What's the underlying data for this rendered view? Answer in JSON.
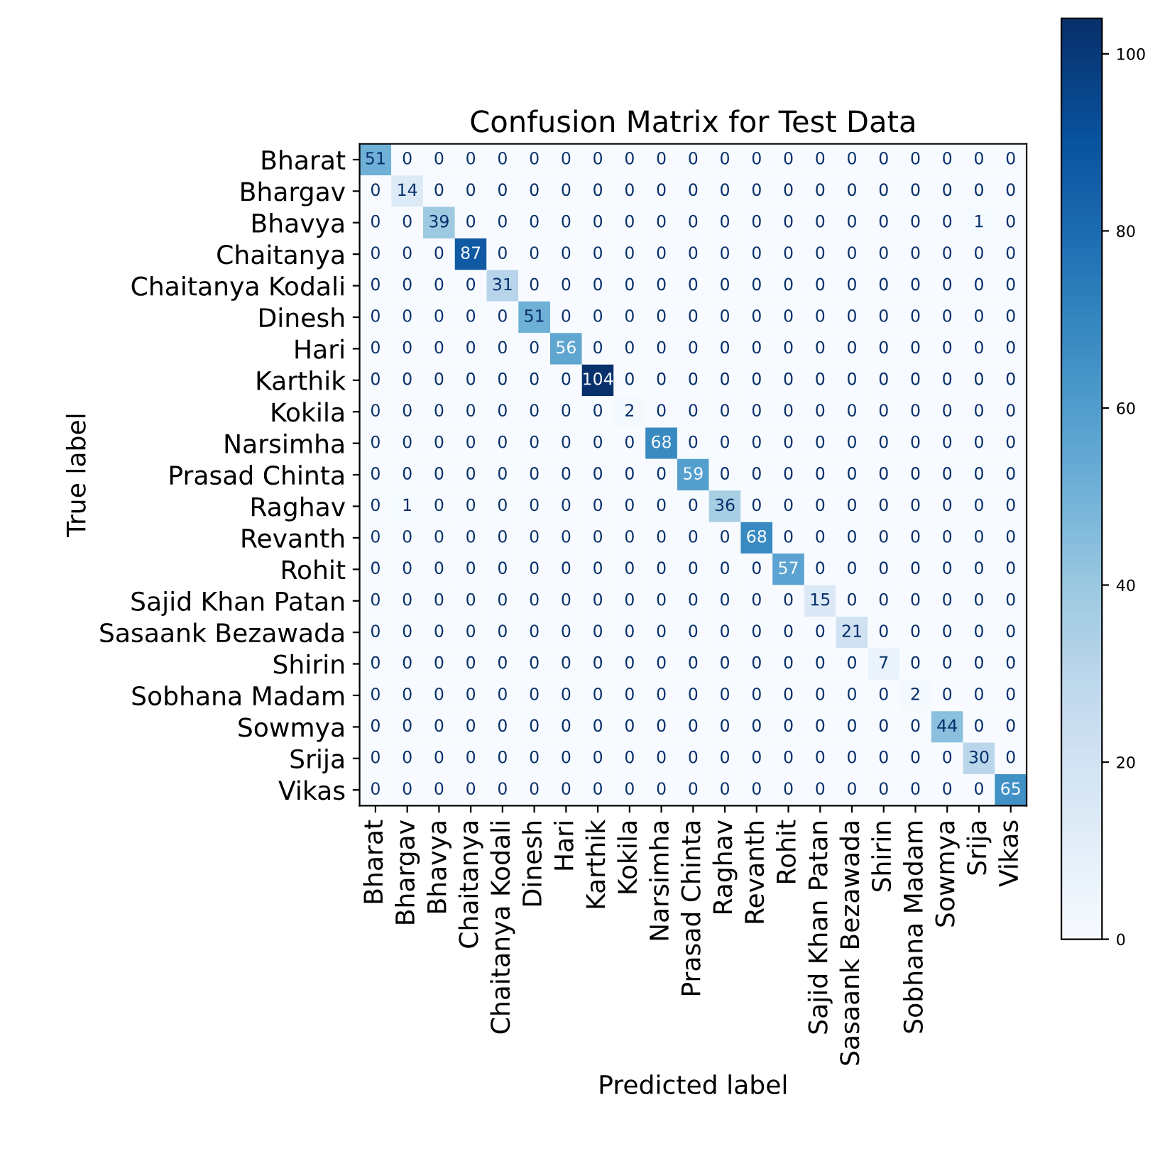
{
  "chart_data": {
    "type": "heatmap",
    "title": "Confusion Matrix for Test Data",
    "xlabel": "Predicted label",
    "ylabel": "True label",
    "categories": [
      "Bharat",
      "Bhargav",
      "Bhavya",
      "Chaitanya",
      "Chaitanya Kodali",
      "Dinesh",
      "Hari",
      "Karthik",
      "Kokila",
      "Narsimha",
      "Prasad Chinta",
      "Raghav",
      "Revanth",
      "Rohit",
      "Sajid Khan Patan",
      "Sasaank Bezawada",
      "Shirin",
      "Sobhana Madam",
      "Sowmya",
      "Srija",
      "Vikas"
    ],
    "y_categories": [
      "Bharat",
      "Bhargav",
      "Bhavya",
      "Chaitanya",
      "Chaitanya Kodali",
      "Dinesh",
      "Hari",
      "Karthik",
      "Kokila",
      "Narsimha",
      "Prasad Chinta",
      "Raghav",
      "Revanth",
      "Rohit",
      "Sajid Khan Patan",
      "Sasaank Bezawada",
      "Shirin",
      "Sobhana Madam",
      "Sowmya",
      "Srija",
      "Vikas"
    ],
    "cells": [
      [
        51,
        0,
        0,
        0,
        0,
        0,
        0,
        0,
        0,
        0,
        0,
        0,
        0,
        0,
        0,
        0,
        0,
        0,
        0,
        0,
        0
      ],
      [
        0,
        14,
        0,
        0,
        0,
        0,
        0,
        0,
        0,
        0,
        0,
        0,
        0,
        0,
        0,
        0,
        0,
        0,
        0,
        0,
        0
      ],
      [
        0,
        0,
        39,
        0,
        0,
        0,
        0,
        0,
        0,
        0,
        0,
        0,
        0,
        0,
        0,
        0,
        0,
        0,
        0,
        1,
        0
      ],
      [
        0,
        0,
        0,
        87,
        0,
        0,
        0,
        0,
        0,
        0,
        0,
        0,
        0,
        0,
        0,
        0,
        0,
        0,
        0,
        0,
        0
      ],
      [
        0,
        0,
        0,
        0,
        31,
        0,
        0,
        0,
        0,
        0,
        0,
        0,
        0,
        0,
        0,
        0,
        0,
        0,
        0,
        0,
        0
      ],
      [
        0,
        0,
        0,
        0,
        0,
        51,
        0,
        0,
        0,
        0,
        0,
        0,
        0,
        0,
        0,
        0,
        0,
        0,
        0,
        0,
        0
      ],
      [
        0,
        0,
        0,
        0,
        0,
        0,
        56,
        0,
        0,
        0,
        0,
        0,
        0,
        0,
        0,
        0,
        0,
        0,
        0,
        0,
        0
      ],
      [
        0,
        0,
        0,
        0,
        0,
        0,
        0,
        104,
        0,
        0,
        0,
        0,
        0,
        0,
        0,
        0,
        0,
        0,
        0,
        0,
        0
      ],
      [
        0,
        0,
        0,
        0,
        0,
        0,
        0,
        0,
        2,
        0,
        0,
        0,
        0,
        0,
        0,
        0,
        0,
        0,
        0,
        0,
        0
      ],
      [
        0,
        0,
        0,
        0,
        0,
        0,
        0,
        0,
        0,
        68,
        0,
        0,
        0,
        0,
        0,
        0,
        0,
        0,
        0,
        0,
        0
      ],
      [
        0,
        0,
        0,
        0,
        0,
        0,
        0,
        0,
        0,
        0,
        59,
        0,
        0,
        0,
        0,
        0,
        0,
        0,
        0,
        0,
        0
      ],
      [
        0,
        1,
        0,
        0,
        0,
        0,
        0,
        0,
        0,
        0,
        0,
        36,
        0,
        0,
        0,
        0,
        0,
        0,
        0,
        0,
        0
      ],
      [
        0,
        0,
        0,
        0,
        0,
        0,
        0,
        0,
        0,
        0,
        0,
        0,
        68,
        0,
        0,
        0,
        0,
        0,
        0,
        0,
        0
      ],
      [
        0,
        0,
        0,
        0,
        0,
        0,
        0,
        0,
        0,
        0,
        0,
        0,
        0,
        57,
        0,
        0,
        0,
        0,
        0,
        0,
        0
      ],
      [
        0,
        0,
        0,
        0,
        0,
        0,
        0,
        0,
        0,
        0,
        0,
        0,
        0,
        0,
        15,
        0,
        0,
        0,
        0,
        0,
        0
      ],
      [
        0,
        0,
        0,
        0,
        0,
        0,
        0,
        0,
        0,
        0,
        0,
        0,
        0,
        0,
        0,
        21,
        0,
        0,
        0,
        0,
        0
      ],
      [
        0,
        0,
        0,
        0,
        0,
        0,
        0,
        0,
        0,
        0,
        0,
        0,
        0,
        0,
        0,
        0,
        7,
        0,
        0,
        0,
        0
      ],
      [
        0,
        0,
        0,
        0,
        0,
        0,
        0,
        0,
        0,
        0,
        0,
        0,
        0,
        0,
        0,
        0,
        0,
        2,
        0,
        0,
        0
      ],
      [
        0,
        0,
        0,
        0,
        0,
        0,
        0,
        0,
        0,
        0,
        0,
        0,
        0,
        0,
        0,
        0,
        0,
        0,
        44,
        0,
        0
      ],
      [
        0,
        0,
        0,
        0,
        0,
        0,
        0,
        0,
        0,
        0,
        0,
        0,
        0,
        0,
        0,
        0,
        0,
        0,
        0,
        30,
        0
      ],
      [
        0,
        0,
        0,
        0,
        0,
        0,
        0,
        0,
        0,
        0,
        0,
        0,
        0,
        0,
        0,
        0,
        0,
        0,
        0,
        0,
        65
      ]
    ],
    "data_labels": true,
    "clim": [
      0,
      104
    ],
    "cticks": [
      0,
      20,
      40,
      60,
      80,
      100
    ]
  }
}
